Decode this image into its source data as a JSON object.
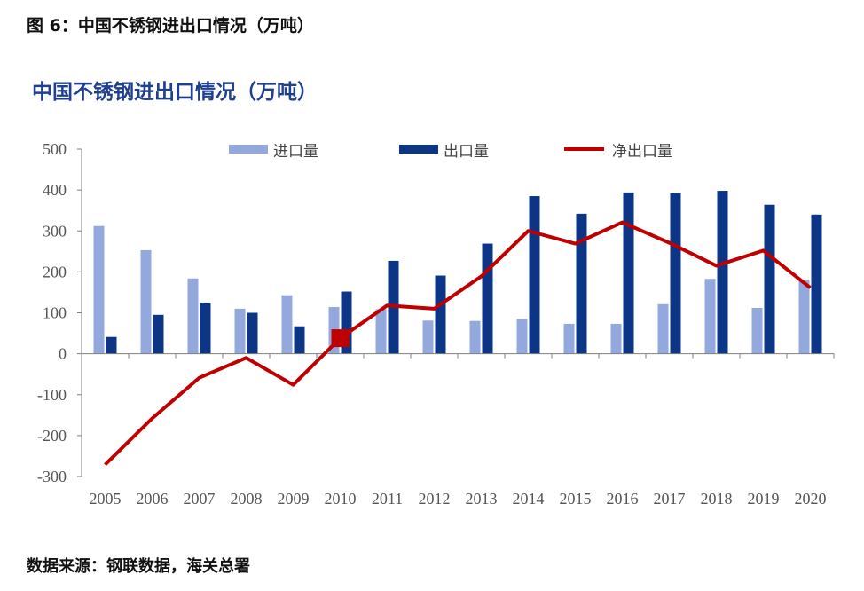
{
  "figure_caption": "图 6：中国不锈钢进出口情况（万吨）",
  "source_note": "数据来源：钢联数据，海关总署",
  "colors": {
    "import": "#93a9dd",
    "export": "#0d3585",
    "net": "#c00000",
    "axis": "#7f7f7f",
    "title": "#1f3f8f"
  },
  "chart_data": {
    "type": "bar",
    "title": "中国不锈钢进出口情况（万吨）",
    "xlabel": "",
    "ylabel": "",
    "ylim": [
      -300,
      500
    ],
    "yticks": [
      500,
      400,
      300,
      200,
      100,
      0,
      -100,
      -200,
      -300
    ],
    "categories": [
      "2005",
      "2006",
      "2007",
      "2008",
      "2009",
      "2010",
      "2011",
      "2012",
      "2013",
      "2014",
      "2015",
      "2016",
      "2017",
      "2018",
      "2019",
      "2020"
    ],
    "series": [
      {
        "name": "进口量",
        "type": "bar",
        "values": [
          312,
          253,
          184,
          110,
          143,
          114,
          109,
          81,
          80,
          85,
          73,
          73,
          121,
          183,
          112,
          179
        ]
      },
      {
        "name": "出口量",
        "type": "bar",
        "values": [
          41,
          95,
          125,
          100,
          67,
          152,
          227,
          191,
          269,
          385,
          342,
          394,
          392,
          398,
          364,
          340
        ]
      },
      {
        "name": "净出口量",
        "type": "line",
        "values": [
          -271,
          -158,
          -59,
          -10,
          -76,
          38,
          118,
          110,
          189,
          300,
          269,
          321,
          271,
          215,
          252,
          161
        ]
      }
    ],
    "highlight": {
      "series": "净出口量",
      "category": "2010",
      "value": 38
    },
    "legend_position": "top"
  }
}
